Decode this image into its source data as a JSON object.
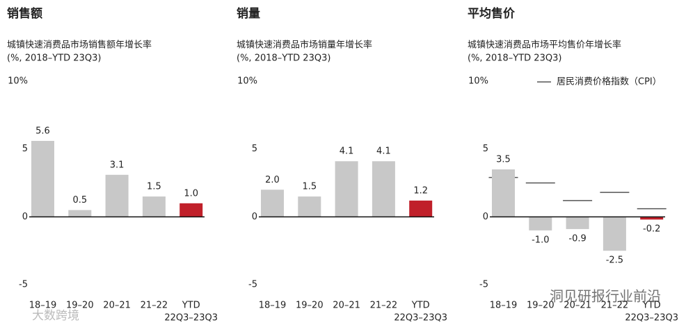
{
  "chart_data": [
    {
      "type": "bar",
      "title": "销售额",
      "subtitle": [
        "城镇快速消费品市场销售额年增长率",
        "(%, 2018–YTD 23Q3)"
      ],
      "categories": [
        "18–19",
        "19–20",
        "20–21",
        "21–22",
        "YTD"
      ],
      "category_note": "22Q3–23Q3",
      "values": [
        5.6,
        0.5,
        3.1,
        1.5,
        1.0
      ],
      "value_labels": [
        "5.6",
        "0.5",
        "3.1",
        "1.5",
        "1.0"
      ],
      "colors": [
        "#c8c8c8",
        "#c8c8c8",
        "#c8c8c8",
        "#c8c8c8",
        "#c0202a"
      ],
      "ylim": [
        -5,
        10
      ],
      "yticks": [
        -5,
        0,
        5,
        {
          "value": 10,
          "label": "10%"
        }
      ]
    },
    {
      "type": "bar",
      "title": "销量",
      "subtitle": [
        "城镇快速消费品市场销量年增长率",
        "(%, 2018–YTD 23Q3)"
      ],
      "categories": [
        "18–19",
        "19–20",
        "20–21",
        "21–22",
        "YTD"
      ],
      "category_note": "22Q3–23Q3",
      "values": [
        2.0,
        1.5,
        4.1,
        4.1,
        1.2
      ],
      "value_labels": [
        "2.0",
        "1.5",
        "4.1",
        "4.1",
        "1.2"
      ],
      "colors": [
        "#c8c8c8",
        "#c8c8c8",
        "#c8c8c8",
        "#c8c8c8",
        "#c0202a"
      ],
      "ylim": [
        -5,
        10
      ],
      "yticks": [
        -5,
        0,
        5,
        {
          "value": 10,
          "label": "10%"
        }
      ]
    },
    {
      "type": "bar",
      "title": "平均售价",
      "subtitle": [
        "城镇快速消费品市场平均售价年增长率",
        "(%, 2018–YTD 23Q3)"
      ],
      "categories": [
        "18–19",
        "19–20",
        "20–21",
        "21–22",
        "YTD"
      ],
      "category_note": "22Q3–23Q3",
      "values": [
        3.5,
        -1.0,
        -0.9,
        -2.5,
        -0.2
      ],
      "value_labels": [
        "3.5",
        "-1.0",
        "-0.9",
        "-2.5",
        "-0.2"
      ],
      "colors": [
        "#c8c8c8",
        "#c8c8c8",
        "#c8c8c8",
        "#c8c8c8",
        "#c0202a"
      ],
      "cpi": {
        "name": "居民消费价格指数（CPI）",
        "color": "#555555",
        "values": [
          2.9,
          2.5,
          1.2,
          1.8,
          0.6
        ]
      },
      "ylim": [
        -5,
        10
      ],
      "yticks": [
        -5,
        0,
        5,
        {
          "value": 10,
          "label": "10%"
        }
      ]
    }
  ],
  "watermarks": [
    "洞见研报行业前沿",
    "大数跨境"
  ]
}
